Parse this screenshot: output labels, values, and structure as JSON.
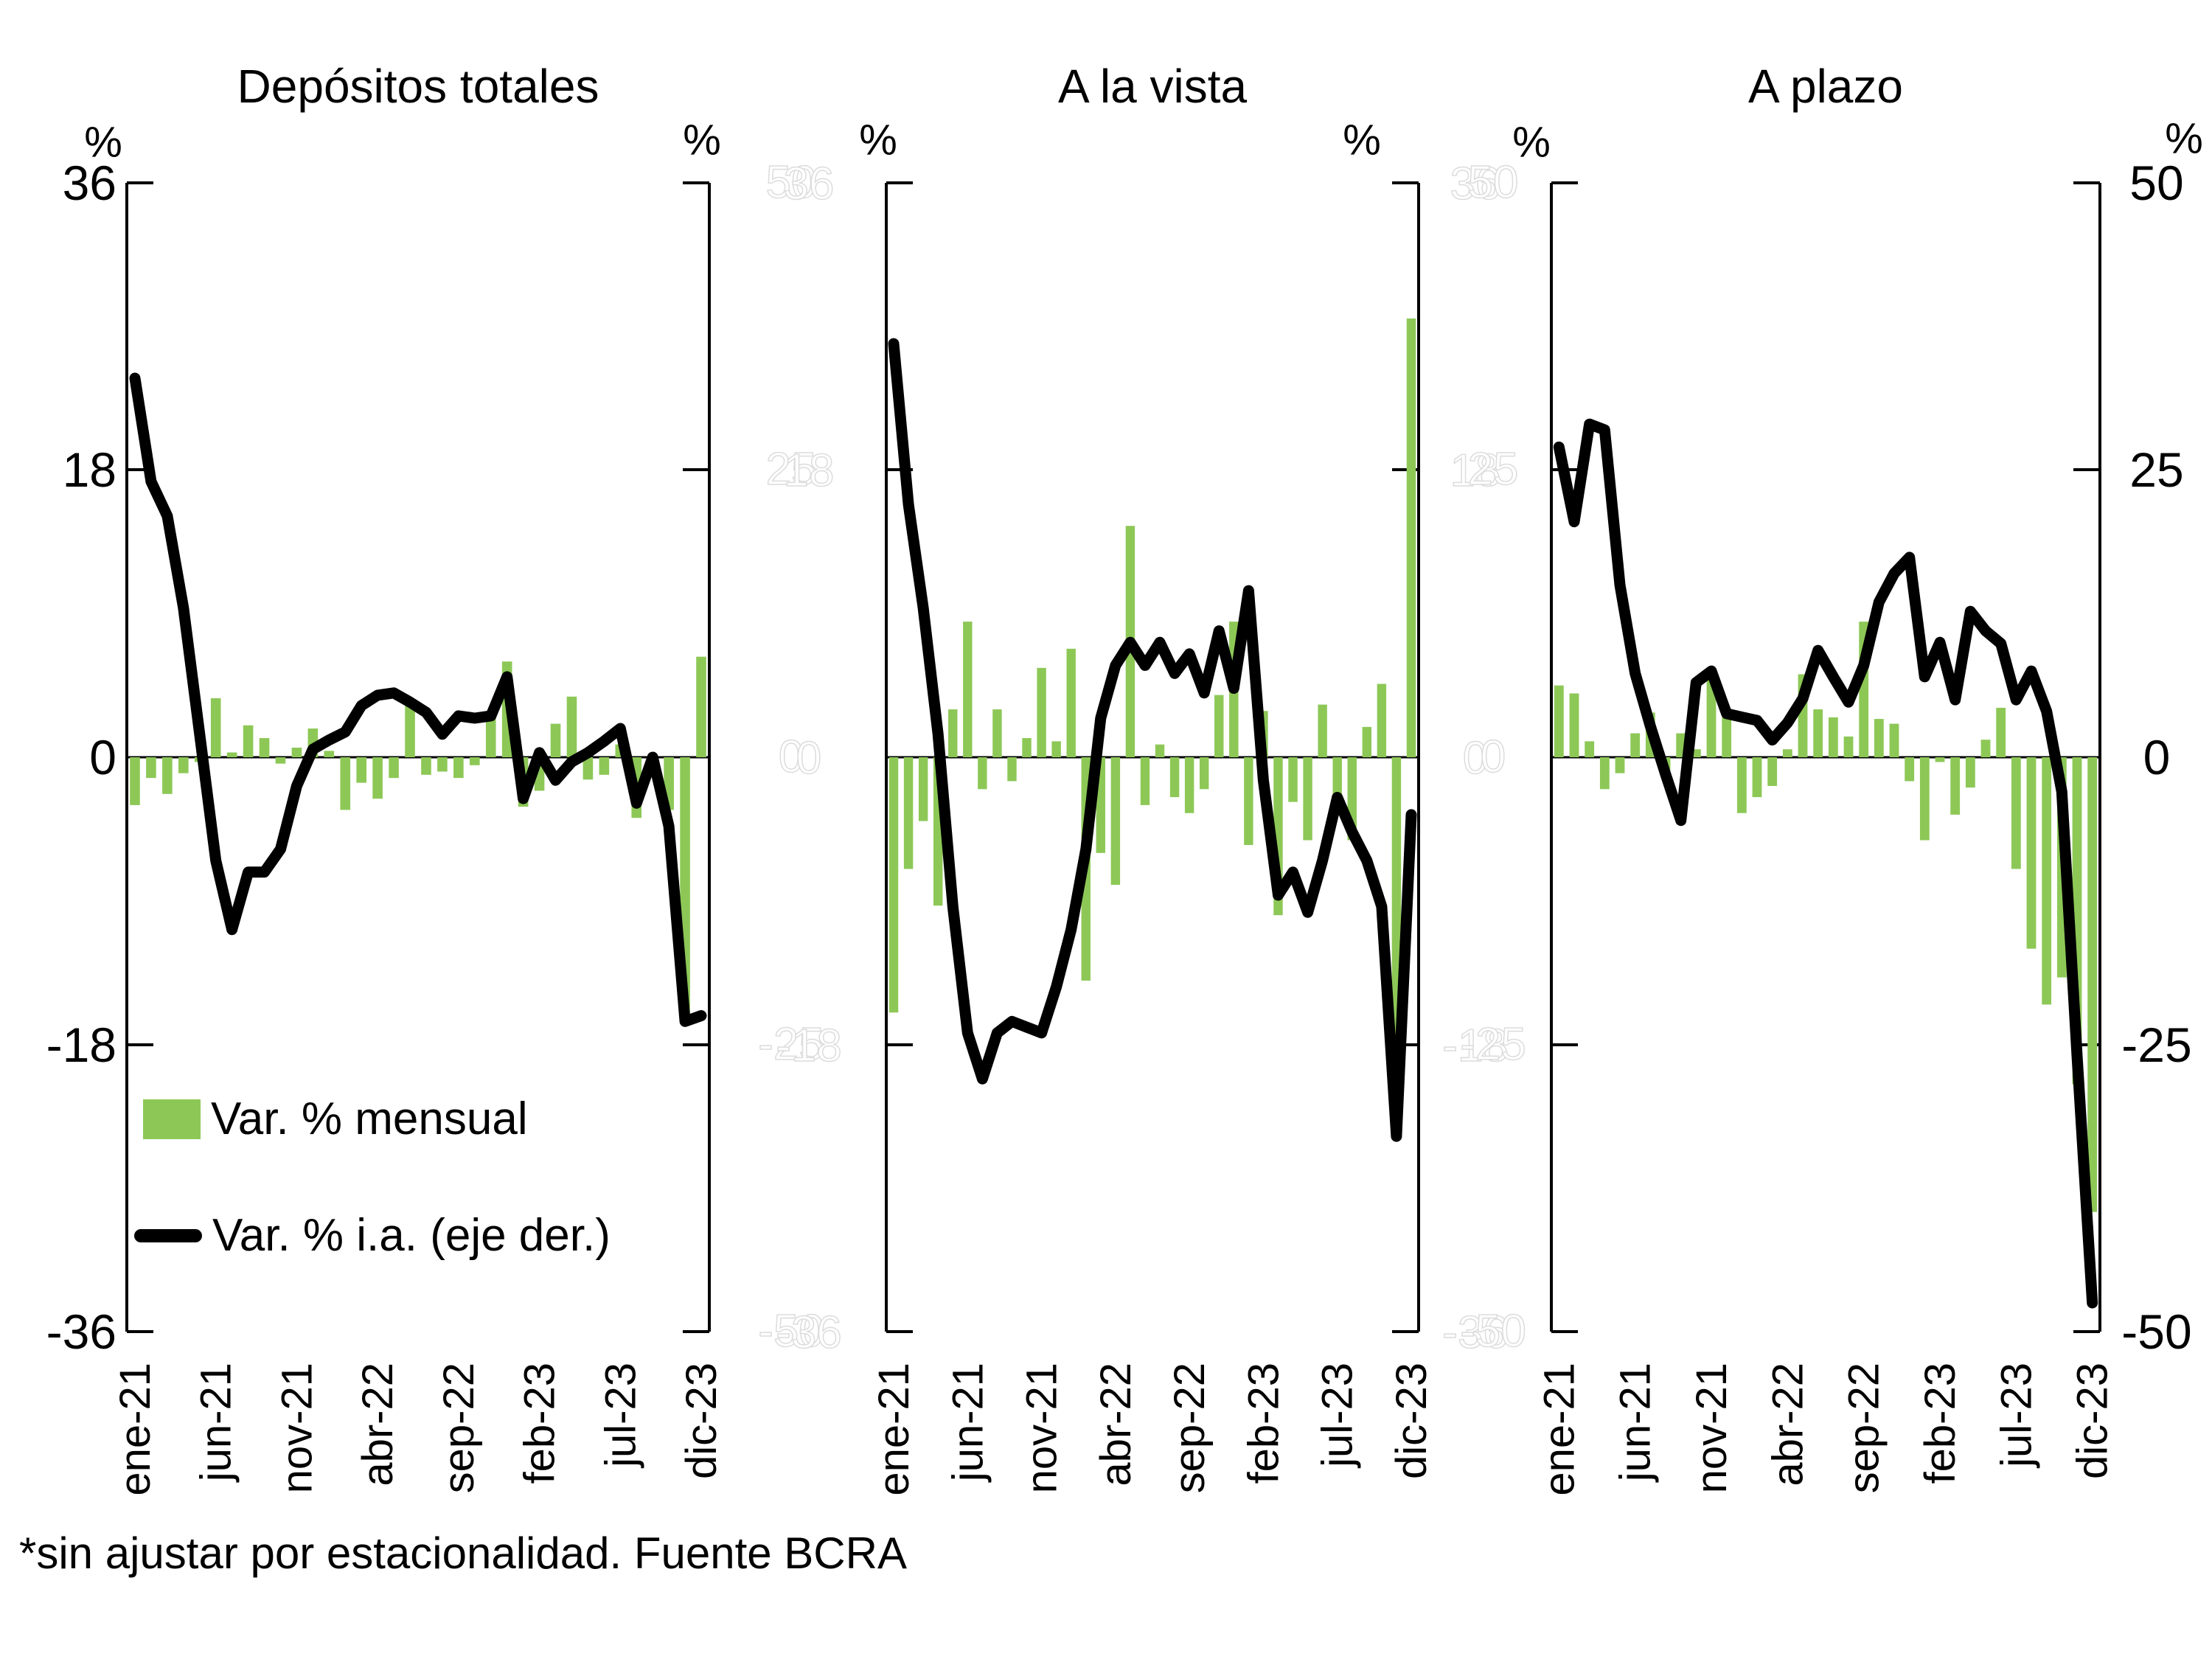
{
  "axes": {
    "percent_label": "%",
    "left_ticks": [
      "36",
      "18",
      "0",
      "-18",
      "-36"
    ],
    "right_ticks": [
      "50",
      "25",
      "0",
      "-25",
      "-50"
    ]
  },
  "ghost": {
    "rows": [
      {
        "right_value": "50",
        "left_value": "36"
      },
      {
        "right_value": "25",
        "left_value": "18"
      },
      {
        "right_value": "0",
        "left_value": "0"
      },
      {
        "right_value": "-25",
        "left_value": "-18"
      },
      {
        "right_value": "-50",
        "left_value": "-36"
      }
    ]
  },
  "legend": {
    "items": [
      {
        "label": "Var. % mensual",
        "swatch": "bar-swatch",
        "color": "#8DC857"
      },
      {
        "label": "Var. % i.a. (eje der.)",
        "swatch": "line-swatch",
        "color": "#000000"
      }
    ]
  },
  "footer": {
    "note": "*sin ajustar por estacionalidad. Fuente BCRA"
  },
  "colors": {
    "bar": "#8DC857",
    "line": "#000000"
  },
  "chart_data": [
    {
      "type": "bar",
      "title": "Depósitos totales",
      "categories": [
        "ene-21",
        "feb-21",
        "mar-21",
        "abr-21",
        "may-21",
        "jun-21",
        "jul-21",
        "ago-21",
        "sep-21",
        "oct-21",
        "nov-21",
        "dic-21",
        "ene-22",
        "feb-22",
        "mar-22",
        "abr-22",
        "may-22",
        "jun-22",
        "jul-22",
        "ago-22",
        "sep-22",
        "oct-22",
        "nov-22",
        "dic-22",
        "ene-23",
        "feb-23",
        "mar-23",
        "abr-23",
        "may-23",
        "jun-23",
        "jul-23",
        "ago-23",
        "sep-23",
        "oct-23",
        "nov-23",
        "dic-23"
      ],
      "x_tick_labels": [
        "ene-21",
        "jun-21",
        "nov-21",
        "abr-22",
        "sep-22",
        "feb-23",
        "jul-23",
        "dic-23"
      ],
      "left_axis": {
        "label": "%",
        "range": [
          -36,
          36
        ],
        "ticks": [
          36,
          18,
          0,
          -18,
          -36
        ]
      },
      "right_axis": {
        "label": "%",
        "range": [
          -50,
          50
        ],
        "ticks": [
          50,
          25,
          0,
          -25,
          -50
        ]
      },
      "series": [
        {
          "name": "Var. % mensual",
          "type": "bar",
          "axis": "left",
          "values": [
            -3.0,
            -1.3,
            -2.3,
            -1.0,
            -0.3,
            3.7,
            0.3,
            2.0,
            1.2,
            -0.4,
            0.6,
            1.8,
            0.4,
            -3.3,
            -1.6,
            -2.6,
            -1.3,
            3.4,
            -1.1,
            -0.9,
            -1.3,
            -0.5,
            2.7,
            6.0,
            -3.1,
            -2.1,
            2.1,
            3.8,
            -1.4,
            -1.1,
            0.8,
            -3.8,
            -0.5,
            -3.3,
            -16.4,
            6.3
          ]
        },
        {
          "name": "Var. % i.a. (eje der.)",
          "type": "line",
          "axis": "right",
          "values": [
            33,
            24,
            21,
            13,
            2,
            -9,
            -15,
            -10,
            -10,
            -8,
            -2.5,
            0.7,
            1.5,
            2.2,
            4.5,
            5.4,
            5.6,
            4.8,
            3.9,
            2.0,
            3.6,
            3.4,
            3.6,
            7.0,
            -3.6,
            0.4,
            -2.0,
            -0.4,
            0.4,
            1.4,
            2.5,
            -4.0,
            0.0,
            -6.0,
            -23.0,
            -22.5
          ]
        }
      ]
    },
    {
      "type": "bar",
      "title": "A la vista",
      "categories": [
        "ene-21",
        "feb-21",
        "mar-21",
        "abr-21",
        "may-21",
        "jun-21",
        "jul-21",
        "ago-21",
        "sep-21",
        "oct-21",
        "nov-21",
        "dic-21",
        "ene-22",
        "feb-22",
        "mar-22",
        "abr-22",
        "may-22",
        "jun-22",
        "jul-22",
        "ago-22",
        "sep-22",
        "oct-22",
        "nov-22",
        "dic-22",
        "ene-23",
        "feb-23",
        "mar-23",
        "abr-23",
        "may-23",
        "jun-23",
        "jul-23",
        "ago-23",
        "sep-23",
        "oct-23",
        "nov-23",
        "dic-23"
      ],
      "x_tick_labels": [
        "ene-21",
        "jun-21",
        "nov-21",
        "abr-22",
        "sep-22",
        "feb-23",
        "jul-23",
        "dic-23"
      ],
      "left_axis": {
        "label": "%",
        "range": [
          -36,
          36
        ],
        "ticks": [
          36,
          18,
          0,
          -18,
          -36
        ]
      },
      "right_axis": {
        "label": "%",
        "range": [
          -50,
          50
        ],
        "ticks": [
          50,
          25,
          0,
          -25,
          -50
        ]
      },
      "series": [
        {
          "name": "Var. % mensual",
          "type": "bar",
          "axis": "left",
          "values": [
            -16,
            -7,
            -4,
            -9.3,
            3,
            8.5,
            -2,
            3,
            -1.5,
            1.2,
            5.6,
            1.0,
            6.8,
            -14,
            -6,
            -8,
            14.5,
            -3,
            0.8,
            -2.5,
            -3.5,
            -2,
            3.9,
            8.5,
            -5.5,
            2.9,
            -9.9,
            -2.8,
            -5.2,
            3.3,
            -2.8,
            -5.2,
            1.9,
            4.6,
            -20.8,
            27.5
          ]
        },
        {
          "name": "Var. % i.a. (eje der.)",
          "type": "line",
          "axis": "right",
          "values": [
            36,
            22,
            13,
            2,
            -13,
            -24,
            -28,
            -24,
            -23,
            -23.5,
            -24,
            -20,
            -15,
            -8,
            3.4,
            8,
            10,
            8,
            10,
            7.3,
            9,
            5.6,
            11,
            6,
            14.5,
            -2,
            -12,
            -10,
            -13.5,
            -9,
            -3.5,
            -6.5,
            -9,
            -13,
            -33,
            -5
          ]
        }
      ]
    },
    {
      "type": "bar",
      "title": "A plazo",
      "categories": [
        "ene-21",
        "feb-21",
        "mar-21",
        "abr-21",
        "may-21",
        "jun-21",
        "jul-21",
        "ago-21",
        "sep-21",
        "oct-21",
        "nov-21",
        "dic-21",
        "ene-22",
        "feb-22",
        "mar-22",
        "abr-22",
        "may-22",
        "jun-22",
        "jul-22",
        "ago-22",
        "sep-22",
        "oct-22",
        "nov-22",
        "dic-22",
        "ene-23",
        "feb-23",
        "mar-23",
        "abr-23",
        "may-23",
        "jun-23",
        "jul-23",
        "ago-23",
        "sep-23",
        "oct-23",
        "nov-23",
        "dic-23"
      ],
      "x_tick_labels": [
        "ene-21",
        "jun-21",
        "nov-21",
        "abr-22",
        "sep-22",
        "feb-23",
        "jul-23",
        "dic-23"
      ],
      "left_axis": {
        "label": "%",
        "range": [
          -36,
          36
        ],
        "ticks": [
          36,
          18,
          0,
          -18,
          -36
        ]
      },
      "right_axis": {
        "label": "%",
        "range": [
          -50,
          50
        ],
        "ticks": [
          50,
          25,
          0,
          -25,
          -50
        ]
      },
      "series": [
        {
          "name": "Var. % mensual",
          "type": "bar",
          "axis": "left",
          "values": [
            4.5,
            4.0,
            1.0,
            -2.0,
            -1.0,
            1.5,
            2.8,
            -0.8,
            1.5,
            0.5,
            5.5,
            2.5,
            -3.5,
            -2.5,
            -1.8,
            0.5,
            5.2,
            3.0,
            2.5,
            1.3,
            8.5,
            2.4,
            2.1,
            -1.5,
            -5.2,
            -0.3,
            -3.6,
            -1.9,
            1.1,
            3.1,
            -7.0,
            -12.0,
            -15.5,
            -13.8,
            -20.5,
            -28.5
          ]
        },
        {
          "name": "Var. % i.a. (eje der.)",
          "type": "line",
          "axis": "right",
          "values": [
            27,
            20.5,
            29,
            28.5,
            15,
            7.3,
            2.7,
            -1.5,
            -5.5,
            6.5,
            7.5,
            3.8,
            3.5,
            3.2,
            1.5,
            3.0,
            5.1,
            9.3,
            7.0,
            4.8,
            8.0,
            13.5,
            16.0,
            17.4,
            7.0,
            10.0,
            5.0,
            12.7,
            11.0,
            9.9,
            5.0,
            7.5,
            4.0,
            -3.0,
            -26.0,
            -47.5
          ]
        }
      ]
    }
  ]
}
